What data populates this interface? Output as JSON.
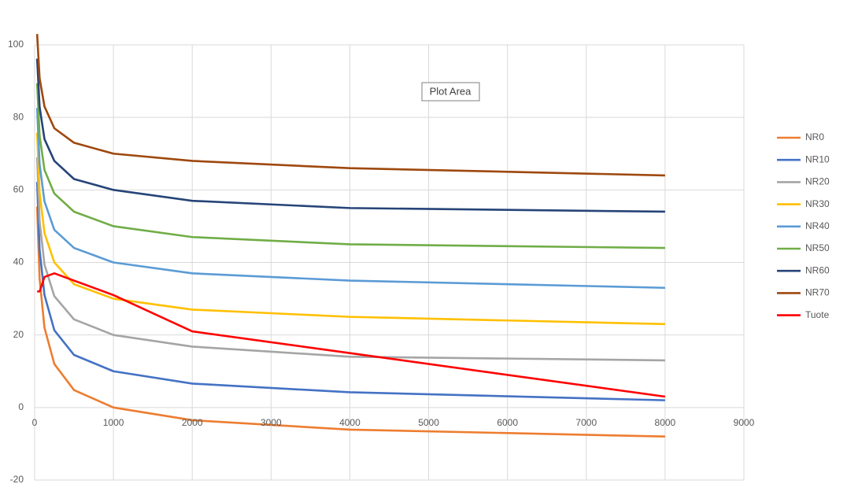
{
  "chart_data": {
    "type": "line",
    "annotation": "Plot Area",
    "x": [
      31.5,
      63,
      125,
      250,
      500,
      1000,
      2000,
      4000,
      8000
    ],
    "xlim": [
      0,
      9000
    ],
    "xticks": [
      0,
      1000,
      2000,
      3000,
      4000,
      5000,
      6000,
      7000,
      8000,
      9000
    ],
    "ylim": [
      -20,
      100
    ],
    "yticks": [
      -20,
      0,
      20,
      40,
      60,
      80,
      100
    ],
    "grid": true,
    "legend": "right",
    "series": [
      {
        "name": "NR0",
        "color": "#ed7d31",
        "values": [
          55.4,
          35.5,
          22,
          12,
          4.8,
          0,
          -3.5,
          -6.1,
          -8
        ]
      },
      {
        "name": "NR10",
        "color": "#4472c4",
        "values": [
          62.2,
          43.5,
          31,
          21.3,
          14.5,
          10,
          6.6,
          4.2,
          2
        ]
      },
      {
        "name": "NR20",
        "color": "#a5a5a5",
        "values": [
          69,
          51.3,
          39.4,
          30.7,
          24.3,
          20,
          16.8,
          14,
          13
        ]
      },
      {
        "name": "NR30",
        "color": "#ffc000",
        "values": [
          75.8,
          59.2,
          48.1,
          40,
          34,
          30,
          27,
          25,
          23
        ]
      },
      {
        "name": "NR40",
        "color": "#5b9bd5",
        "values": [
          82.6,
          67.1,
          56.8,
          49,
          44,
          40,
          37,
          35,
          33
        ]
      },
      {
        "name": "NR50",
        "color": "#70ad47",
        "values": [
          89.4,
          75,
          65.5,
          59,
          54,
          50,
          47,
          45,
          44
        ]
      },
      {
        "name": "NR60",
        "color": "#264478",
        "values": [
          96.2,
          82.9,
          74,
          68,
          63,
          60,
          57,
          55,
          54
        ]
      },
      {
        "name": "NR70",
        "color": "#9e480e",
        "values": [
          103,
          90.8,
          83,
          77,
          73,
          70,
          68,
          66,
          64
        ]
      },
      {
        "name": "Tuote",
        "color": "#ff0000",
        "values": [
          32,
          32,
          36,
          37,
          35,
          31,
          21,
          15,
          3
        ]
      }
    ]
  }
}
